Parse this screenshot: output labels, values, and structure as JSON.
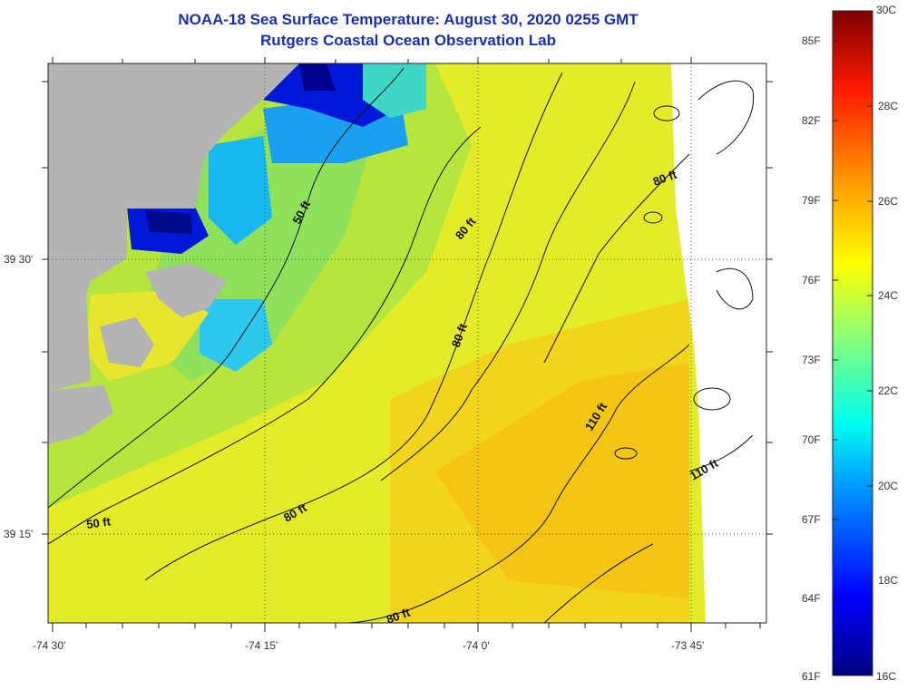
{
  "title_line1": "NOAA-18 Sea Surface Temperature:  August 30, 2020 0255 GMT",
  "title_line2": "Rutgers Coastal Ocean Observation Lab",
  "map": {
    "lon_labels": [
      "-74 30'",
      "-74 15'",
      "-74 0'",
      "-73 45'"
    ],
    "lat_labels": [
      "39 30'",
      "39 15'"
    ],
    "land_color": "#b4b4b4",
    "contour_labels": [
      "50 ft",
      "50 ft",
      "80 ft",
      "80 ft",
      "80 ft",
      "80 ft",
      "80 ft",
      "110 ft",
      "110 ft"
    ]
  },
  "colorbar": {
    "celsius_min": "16C",
    "celsius_max": "30C",
    "celsius_labels": [
      "28C",
      "26C",
      "24C",
      "22C",
      "20C",
      "18C"
    ],
    "fahrenheit_min": "61F",
    "fahrenheit_labels": [
      "85F",
      "82F",
      "79F",
      "76F",
      "73F",
      "70F",
      "67F",
      "64F"
    ]
  }
}
